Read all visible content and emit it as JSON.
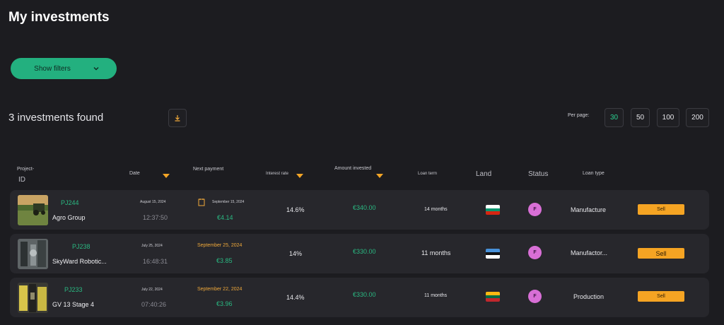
{
  "page": {
    "title": "My investments"
  },
  "filters": {
    "label": "Show filters"
  },
  "results": {
    "found_label": "3 investments found"
  },
  "per_page": {
    "label": "Per page:",
    "options": [
      "30",
      "50",
      "100",
      "200"
    ],
    "selected": "30"
  },
  "table": {
    "headers": {
      "project_line1": "Project-",
      "project_line2": "ID",
      "date": "Date",
      "next_payment": "Next payment",
      "interest_rate": "Interest rate",
      "amount_invested": "Amount invested",
      "loan_term": "Loan term",
      "land": "Land",
      "status": "Status",
      "loan_type": "Loan type"
    },
    "rows": [
      {
        "id": "PJ244",
        "name": "Agro Group",
        "date": "August 15, 2024",
        "time": "12:37:50",
        "next_payment_date": "September 15, 2024",
        "next_payment_amount": "€4.14",
        "interest": "14.6%",
        "amount": "€340.00",
        "term": "14 months",
        "land": "Bulgaria",
        "status": "F",
        "loan_type": "Manufacture",
        "action": "Sell"
      },
      {
        "id": "PJ238",
        "name": "SkyWard Robotic...",
        "date": "July 25, 2024",
        "time": "16:48:31",
        "next_payment_date": "September 25, 2024",
        "next_payment_amount": "€3.85",
        "interest": "14%",
        "amount": "€330.00",
        "term": "11 months",
        "land": "Estonia",
        "status": "F",
        "loan_type": "Manufactor...",
        "action": "Sell"
      },
      {
        "id": "PJ233",
        "name": "GV 13 Stage 4",
        "date": "July 22, 2024",
        "time": "07:40:26",
        "next_payment_date": "September 22, 2024",
        "next_payment_amount": "€3.96",
        "interest": "14.4%",
        "amount": "€330.00",
        "term": "11 months",
        "land": "Lithuania",
        "status": "F",
        "loan_type": "Production",
        "action": "Sell"
      }
    ]
  },
  "colors": {
    "accent_green": "#23b07f",
    "sell_orange": "#f5a423",
    "background": "#1c1c20",
    "row_bg": "#27272c"
  }
}
